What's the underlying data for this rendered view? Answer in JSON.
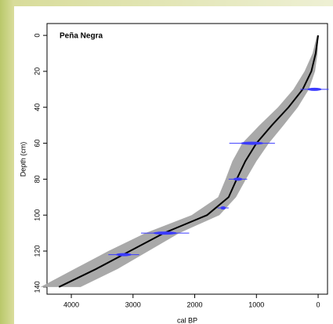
{
  "chart_data": {
    "type": "age-depth",
    "title": "Peña Negra",
    "xlabel": "cal BP",
    "ylabel": "Depth (cm)",
    "xlim": [
      4394,
      -152
    ],
    "ylim": [
      -6.6,
      144
    ],
    "xticks": [
      4000,
      3000,
      2000,
      1000,
      0
    ],
    "yticks": [
      0,
      20,
      40,
      60,
      80,
      100,
      120,
      140
    ],
    "model": {
      "color": "#000000",
      "band_color": "#a9a9a9",
      "depth": [
        0,
        10,
        20,
        30,
        40,
        50,
        60,
        70,
        80,
        90,
        100,
        110,
        120,
        130,
        140
      ],
      "age": [
        0,
        40,
        110,
        250,
        480,
        750,
        1000,
        1180,
        1320,
        1450,
        1800,
        2500,
        3050,
        3600,
        4200
      ],
      "age_min": [
        0,
        10,
        50,
        150,
        330,
        560,
        800,
        1000,
        1170,
        1330,
        1600,
        2250,
        2750,
        3250,
        3850
      ],
      "age_max": [
        20,
        90,
        220,
        400,
        650,
        950,
        1230,
        1390,
        1500,
        1620,
        2050,
        2800,
        3400,
        3950,
        4500
      ]
    },
    "dates": {
      "color": "#3b3bff",
      "age": [
        60,
        1070,
        1300,
        1540,
        2480,
        3150
      ],
      "depth": [
        30,
        60,
        80,
        96,
        110,
        122
      ],
      "error": [
        230,
        370,
        150,
        90,
        390,
        250
      ]
    }
  }
}
